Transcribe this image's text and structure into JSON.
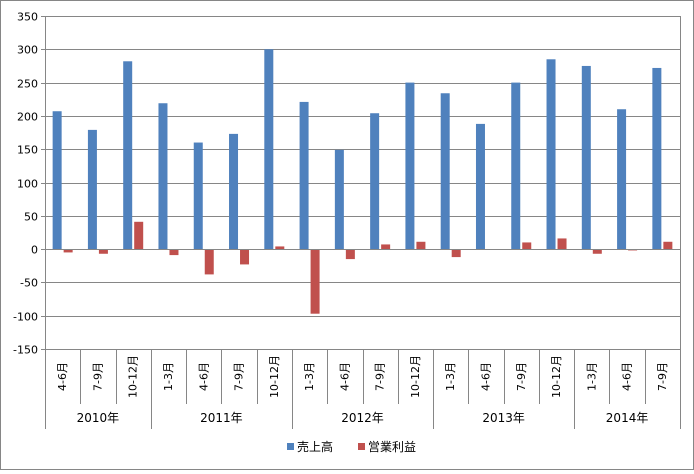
{
  "chart_data": {
    "type": "bar",
    "title": "",
    "xlabel": "",
    "ylabel": "",
    "ylim": [
      -150,
      350
    ],
    "yticks": [
      -150,
      -100,
      -50,
      0,
      50,
      100,
      150,
      200,
      250,
      300,
      350
    ],
    "grid": true,
    "legend_position": "bottom",
    "categories": [
      "4-6月",
      "7-9月",
      "10-12月",
      "1-3月",
      "4-6月",
      "7-9月",
      "10-12月",
      "1-3月",
      "4-6月",
      "7-9月",
      "10-12月",
      "1-3月",
      "4-6月",
      "7-9月",
      "10-12月",
      "1-3月",
      "4-6月",
      "7-9月"
    ],
    "year_groups": [
      {
        "label": "2010年",
        "count": 3
      },
      {
        "label": "2011年",
        "count": 4
      },
      {
        "label": "2012年",
        "count": 4
      },
      {
        "label": "2013年",
        "count": 4
      },
      {
        "label": "2014年",
        "count": 3
      }
    ],
    "series": [
      {
        "name": "売上高",
        "color": "#4F81BD",
        "values": [
          207,
          179,
          282,
          219,
          160,
          173,
          300,
          221,
          149,
          204,
          250,
          234,
          188,
          250,
          285,
          275,
          210,
          272
        ]
      },
      {
        "name": "営業利益",
        "color": "#C0504D",
        "values": [
          -5,
          -7,
          41,
          -9,
          -38,
          -23,
          4,
          -97,
          -15,
          7,
          11,
          -12,
          0,
          10,
          16,
          -7,
          -2,
          11
        ]
      }
    ]
  }
}
